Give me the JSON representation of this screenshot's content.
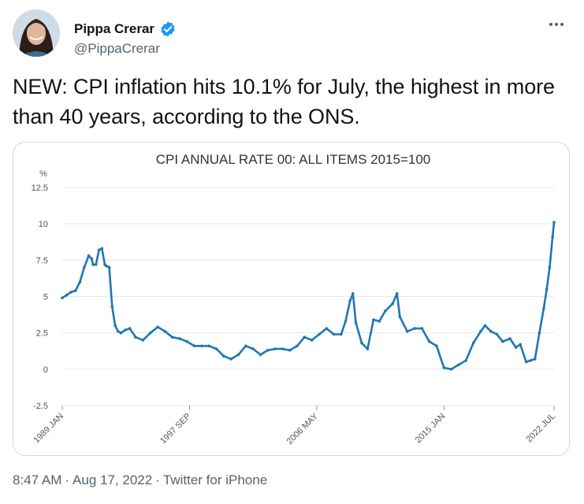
{
  "tweet": {
    "author_name": "Pippa Crerar",
    "author_handle": "@PippaCrerar",
    "text": "NEW: CPI inflation hits 10.1% for July, the highest in more than 40 years, according to the ONS.",
    "time": "8:47 AM",
    "separator": "·",
    "date": "Aug 17, 2022",
    "source": "Twitter for iPhone"
  },
  "icons": {
    "verified": "verified-badge-icon",
    "more": "more-options-icon",
    "avatar": "avatar-photo"
  },
  "colors": {
    "line": "#1f77b4",
    "verified": "#1d9bf0",
    "grid": "#e6e6e6"
  },
  "chart_data": {
    "type": "line",
    "title": "CPI ANNUAL RATE 00: ALL ITEMS 2015=100",
    "ylabel": "%",
    "ylim": [
      -2.5,
      12.5
    ],
    "yticks": [
      12.5,
      10,
      7.5,
      5,
      2.5,
      0,
      -2.5
    ],
    "ytick_labels": [
      "12.5",
      "10",
      "7.5",
      "5",
      "2.5",
      "0",
      "-2.5"
    ],
    "xlim": [
      1989.0,
      2022.5
    ],
    "xticks": [
      1989.0,
      1997.67,
      2006.33,
      2015.0,
      2022.5
    ],
    "xtick_labels": [
      "1989 JAN",
      "1997 SEP",
      "2006 MAY",
      "2015 JAN",
      "2022 JUL"
    ],
    "grid": true,
    "series": [
      {
        "name": "CPI annual rate",
        "x": [
          1989.0,
          1989.3,
          1989.6,
          1989.9,
          1990.2,
          1990.5,
          1990.8,
          1991.0,
          1991.1,
          1991.3,
          1991.5,
          1991.7,
          1991.9,
          1992.0,
          1992.2,
          1992.4,
          1992.6,
          1992.8,
          1993.0,
          1993.3,
          1993.6,
          1994.0,
          1994.5,
          1995.0,
          1995.5,
          1996.0,
          1996.5,
          1997.0,
          1997.5,
          1998.0,
          1998.5,
          1999.0,
          1999.5,
          2000.0,
          2000.5,
          2001.0,
          2001.5,
          2002.0,
          2002.5,
          2003.0,
          2003.5,
          2004.0,
          2004.5,
          2005.0,
          2005.5,
          2006.0,
          2006.5,
          2007.0,
          2007.5,
          2008.0,
          2008.3,
          2008.6,
          2008.8,
          2009.0,
          2009.4,
          2009.8,
          2010.2,
          2010.6,
          2011.0,
          2011.5,
          2011.8,
          2012.0,
          2012.5,
          2013.0,
          2013.5,
          2014.0,
          2014.5,
          2015.0,
          2015.5,
          2016.0,
          2016.5,
          2017.0,
          2017.5,
          2017.8,
          2018.2,
          2018.6,
          2019.0,
          2019.5,
          2019.9,
          2020.2,
          2020.6,
          2020.9,
          2021.2,
          2021.5,
          2021.8,
          2022.0,
          2022.2,
          2022.4,
          2022.5
        ],
        "values": [
          4.9,
          5.1,
          5.3,
          5.4,
          6.0,
          7.0,
          7.8,
          7.6,
          7.2,
          7.2,
          8.2,
          8.3,
          7.2,
          7.1,
          7.0,
          4.3,
          3.0,
          2.6,
          2.5,
          2.7,
          2.8,
          2.2,
          2.0,
          2.5,
          2.9,
          2.6,
          2.2,
          2.1,
          1.9,
          1.6,
          1.6,
          1.6,
          1.4,
          0.9,
          0.7,
          1.0,
          1.6,
          1.4,
          1.0,
          1.3,
          1.4,
          1.4,
          1.3,
          1.6,
          2.2,
          2.0,
          2.4,
          2.8,
          2.4,
          2.4,
          3.3,
          4.7,
          5.2,
          3.2,
          1.8,
          1.4,
          3.4,
          3.3,
          4.0,
          4.5,
          5.2,
          3.6,
          2.6,
          2.8,
          2.8,
          1.9,
          1.6,
          0.1,
          0.0,
          0.3,
          0.6,
          1.8,
          2.6,
          3.0,
          2.6,
          2.4,
          1.9,
          2.1,
          1.5,
          1.7,
          0.5,
          0.6,
          0.7,
          2.5,
          4.2,
          5.5,
          7.0,
          9.1,
          10.1
        ]
      }
    ]
  }
}
